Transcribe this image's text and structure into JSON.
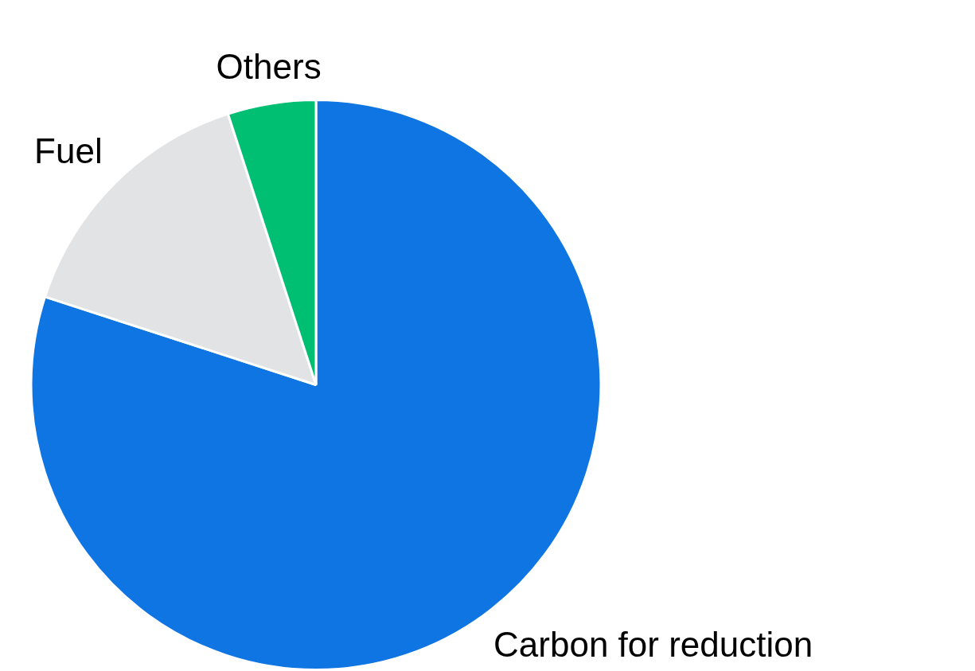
{
  "chart_data": {
    "type": "pie",
    "categories": [
      "Carbon for reduction",
      "Fuel",
      "Others"
    ],
    "values": [
      80,
      15,
      5
    ],
    "colors": [
      "#0e75e3",
      "#e2e3e5",
      "#00bf73"
    ],
    "legend": false
  }
}
